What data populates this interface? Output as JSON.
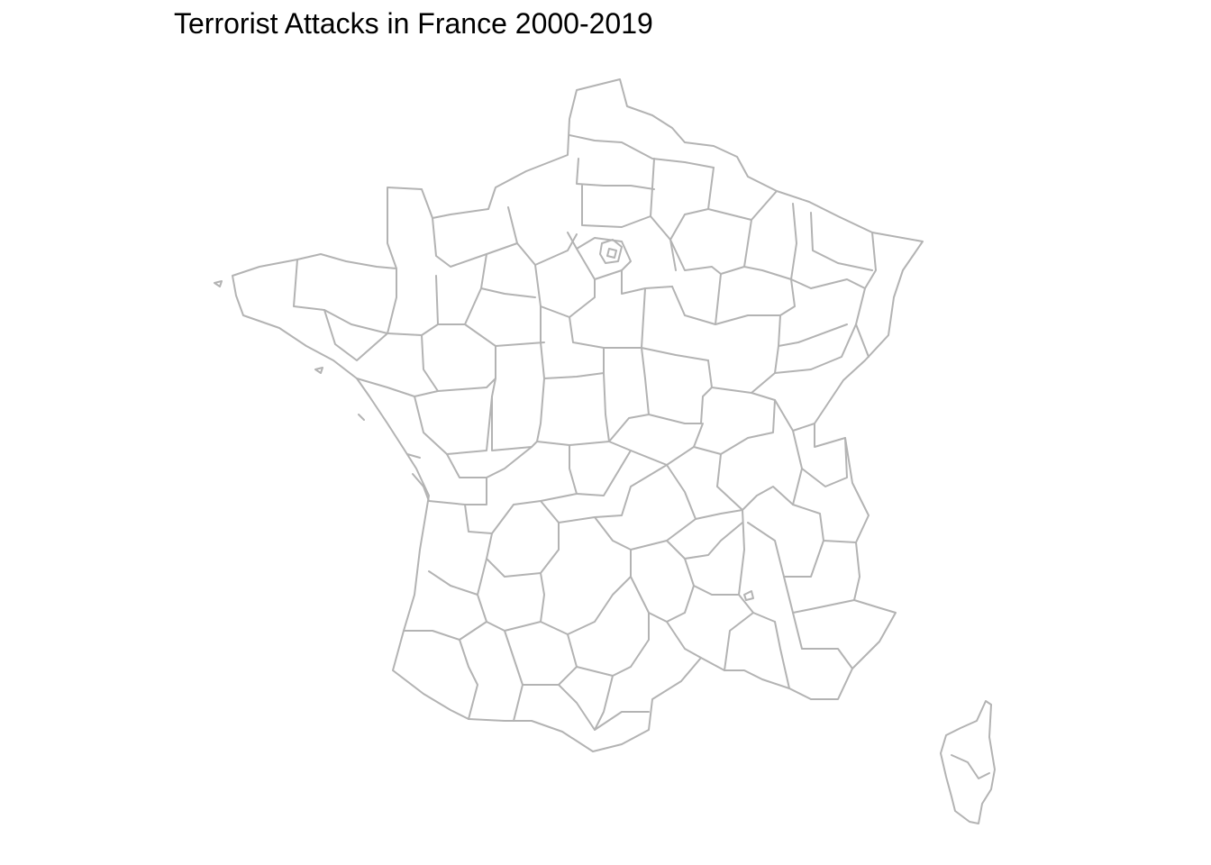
{
  "map": {
    "title": "Terrorist Attacks in France 2000-2019",
    "region": "France",
    "subdivision": "departments",
    "outline_color": "#b3b3b3",
    "fill_color": "#ffffff"
  }
}
